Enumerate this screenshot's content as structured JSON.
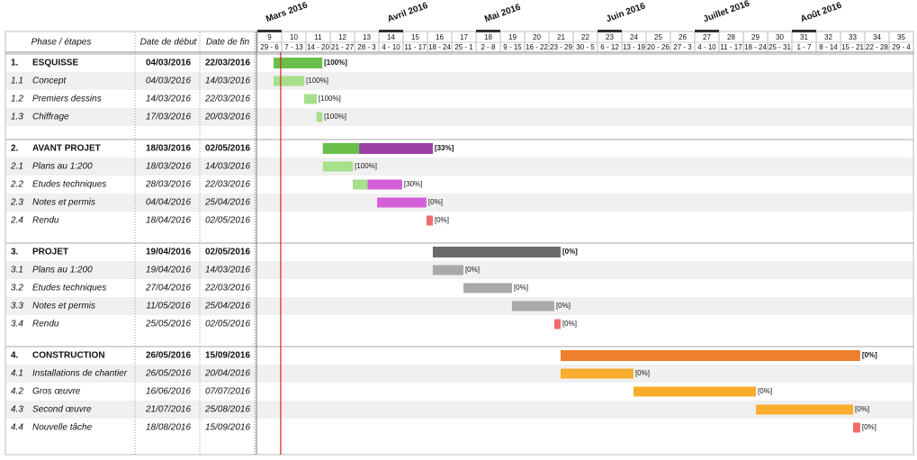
{
  "chart_data": {
    "type": "gantt",
    "columns": [
      "Phase / étapes",
      "Date de début",
      "Date de fin"
    ],
    "xlim": [
      9,
      36
    ],
    "today": 9.96,
    "today_color": "#e0201c",
    "summary_progress_color": "#6abf4b",
    "progress_color": "#a6e08a",
    "months": [
      {
        "label": "Mars 2016",
        "week": 9
      },
      {
        "label": "Avril 2016",
        "week": 14
      },
      {
        "label": "Mai 2016",
        "week": 18
      },
      {
        "label": "Juin 2016",
        "week": 23
      },
      {
        "label": "Juillet 2016",
        "week": 27
      },
      {
        "label": "Août 2016",
        "week": 31
      }
    ],
    "weeks": [
      {
        "number": 9,
        "dates": "29 - 6"
      },
      {
        "number": 10,
        "dates": "7 - 13"
      },
      {
        "number": 11,
        "dates": "14 - 20"
      },
      {
        "number": 12,
        "dates": "21 - 27"
      },
      {
        "number": 13,
        "dates": "28 - 3"
      },
      {
        "number": 14,
        "dates": "4 - 10"
      },
      {
        "number": 15,
        "dates": "11 - 17"
      },
      {
        "number": 16,
        "dates": "18 - 24"
      },
      {
        "number": 17,
        "dates": "25 - 1"
      },
      {
        "number": 18,
        "dates": "2 - 8"
      },
      {
        "number": 19,
        "dates": "9 - 15"
      },
      {
        "number": 20,
        "dates": "16 - 22"
      },
      {
        "number": 21,
        "dates": "23 - 29"
      },
      {
        "number": 22,
        "dates": "30 - 5"
      },
      {
        "number": 23,
        "dates": "6 - 12"
      },
      {
        "number": 24,
        "dates": "13 - 19"
      },
      {
        "number": 25,
        "dates": "20 - 26"
      },
      {
        "number": 26,
        "dates": "27 - 3"
      },
      {
        "number": 27,
        "dates": "4 - 10"
      },
      {
        "number": 28,
        "dates": "11 - 17"
      },
      {
        "number": 29,
        "dates": "18 - 24"
      },
      {
        "number": 30,
        "dates": "25 - 31"
      },
      {
        "number": 31,
        "dates": "1 - 7"
      },
      {
        "number": 32,
        "dates": "8 - 14"
      },
      {
        "number": 33,
        "dates": "15 - 21"
      },
      {
        "number": 34,
        "dates": "22 - 28"
      },
      {
        "number": 35,
        "dates": "29 - 4"
      }
    ],
    "groups": [
      {
        "num": "1.",
        "name": "ESQUISSE",
        "start": "04/03/2016",
        "end": "22/03/2016",
        "bar": [
          9.67,
          11.67
        ],
        "progress": 100,
        "progress_label": "[100%]",
        "color": "#6abf4b",
        "tasks": [
          {
            "num": "1.1",
            "name": "Concept",
            "start": "04/03/2016",
            "end": "14/03/2016",
            "bar": [
              9.67,
              10.93
            ],
            "progress": 100,
            "progress_label": "[100%]",
            "color": "#a6e08a"
          },
          {
            "num": "1.2",
            "name": "Premiers dessins",
            "start": "14/03/2016",
            "end": "22/03/2016",
            "bar": [
              10.93,
              11.44
            ],
            "progress": 100,
            "progress_label": "[100%]",
            "color": "#a6e08a"
          },
          {
            "num": "1.3",
            "name": "Chiffrage",
            "start": "17/03/2016",
            "end": "20/03/2016",
            "bar": [
              11.44,
              11.67
            ],
            "progress": 100,
            "progress_label": "[100%]",
            "color": "#a6e08a"
          }
        ]
      },
      {
        "num": "2.",
        "name": "AVANT PROJET",
        "start": "18/03/2016",
        "end": "02/05/2016",
        "bar": [
          11.7,
          16.22
        ],
        "progress": 33,
        "progress_label": "[33%]",
        "color": "#9b3fa5",
        "tasks": [
          {
            "num": "2.1",
            "name": "Plans au 1:200",
            "start": "18/03/2016",
            "end": "14/03/2016",
            "bar": [
              11.7,
              12.93
            ],
            "progress": 100,
            "progress_label": "[100%]",
            "color": "#a6e08a"
          },
          {
            "num": "2.2",
            "name": "Etudes techniques",
            "start": "28/03/2016",
            "end": "22/03/2016",
            "bar": [
              12.93,
              14.96
            ],
            "progress": 30,
            "progress_label": "[30%]",
            "color": "#d45fd8"
          },
          {
            "num": "2.3",
            "name": "Notes et permis",
            "start": "04/04/2016",
            "end": "25/04/2016",
            "bar": [
              13.93,
              15.96
            ],
            "progress": 0,
            "progress_label": "[0%]",
            "color": "#d45fd8"
          },
          {
            "num": "2.4",
            "name": "Rendu",
            "start": "18/04/2016",
            "end": "02/05/2016",
            "bar": [
              15.96,
              16.22
            ],
            "progress": 0,
            "progress_label": "[0%]",
            "color": "#f06b6b"
          }
        ]
      },
      {
        "num": "3.",
        "name": "PROJET",
        "start": "19/04/2016",
        "end": "02/05/2016",
        "bar": [
          16.22,
          21.48
        ],
        "progress": 0,
        "progress_label": "[0%]",
        "color": "#6b6b6b",
        "tasks": [
          {
            "num": "3.1",
            "name": "Plans au 1:200",
            "start": "19/04/2016",
            "end": "14/03/2016",
            "bar": [
              16.22,
              17.48
            ],
            "progress": 0,
            "progress_label": "[0%]",
            "color": "#a9a9a9"
          },
          {
            "num": "3.2",
            "name": "Etudes techniques",
            "start": "27/04/2016",
            "end": "22/03/2016",
            "bar": [
              17.48,
              19.48
            ],
            "progress": 0,
            "progress_label": "[0%]",
            "color": "#a9a9a9"
          },
          {
            "num": "3.3",
            "name": "Notes et permis",
            "start": "11/05/2016",
            "end": "25/04/2016",
            "bar": [
              19.48,
              21.22
            ],
            "progress": 0,
            "progress_label": "[0%]",
            "color": "#a9a9a9"
          },
          {
            "num": "3.4",
            "name": "Rendu",
            "start": "25/05/2016",
            "end": "02/05/2016",
            "bar": [
              21.22,
              21.48
            ],
            "progress": 0,
            "progress_label": "[0%]",
            "color": "#f06b6b"
          }
        ]
      },
      {
        "num": "4.",
        "name": "CONSTRUCTION",
        "start": "26/05/2016",
        "end": "15/09/2016",
        "bar": [
          21.48,
          33.81
        ],
        "progress": 0,
        "progress_label": "[0%]",
        "color": "#ee7f2d",
        "tasks": [
          {
            "num": "4.1",
            "name": "Installations de chantier",
            "start": "26/05/2016",
            "end": "20/04/2016",
            "bar": [
              21.48,
              24.48
            ],
            "progress": 0,
            "progress_label": "[0%]",
            "color": "#f8ad2c"
          },
          {
            "num": "4.2",
            "name": "Gros œuvre",
            "start": "16/06/2016",
            "end": "07/07/2016",
            "bar": [
              24.48,
              29.52
            ],
            "progress": 0,
            "progress_label": "[0%]",
            "color": "#f8ad2c"
          },
          {
            "num": "4.3",
            "name": "Second œuvre",
            "start": "21/07/2016",
            "end": "25/08/2016",
            "bar": [
              29.52,
              33.52
            ],
            "progress": 0,
            "progress_label": "[0%]",
            "color": "#f8ad2c"
          },
          {
            "num": "4.4",
            "name": "Nouvelle tâche",
            "start": "18/08/2016",
            "end": "15/09/2016",
            "bar": [
              33.52,
              33.81
            ],
            "progress": 0,
            "progress_label": "[0%]",
            "color": "#f06b6b"
          }
        ]
      }
    ]
  }
}
